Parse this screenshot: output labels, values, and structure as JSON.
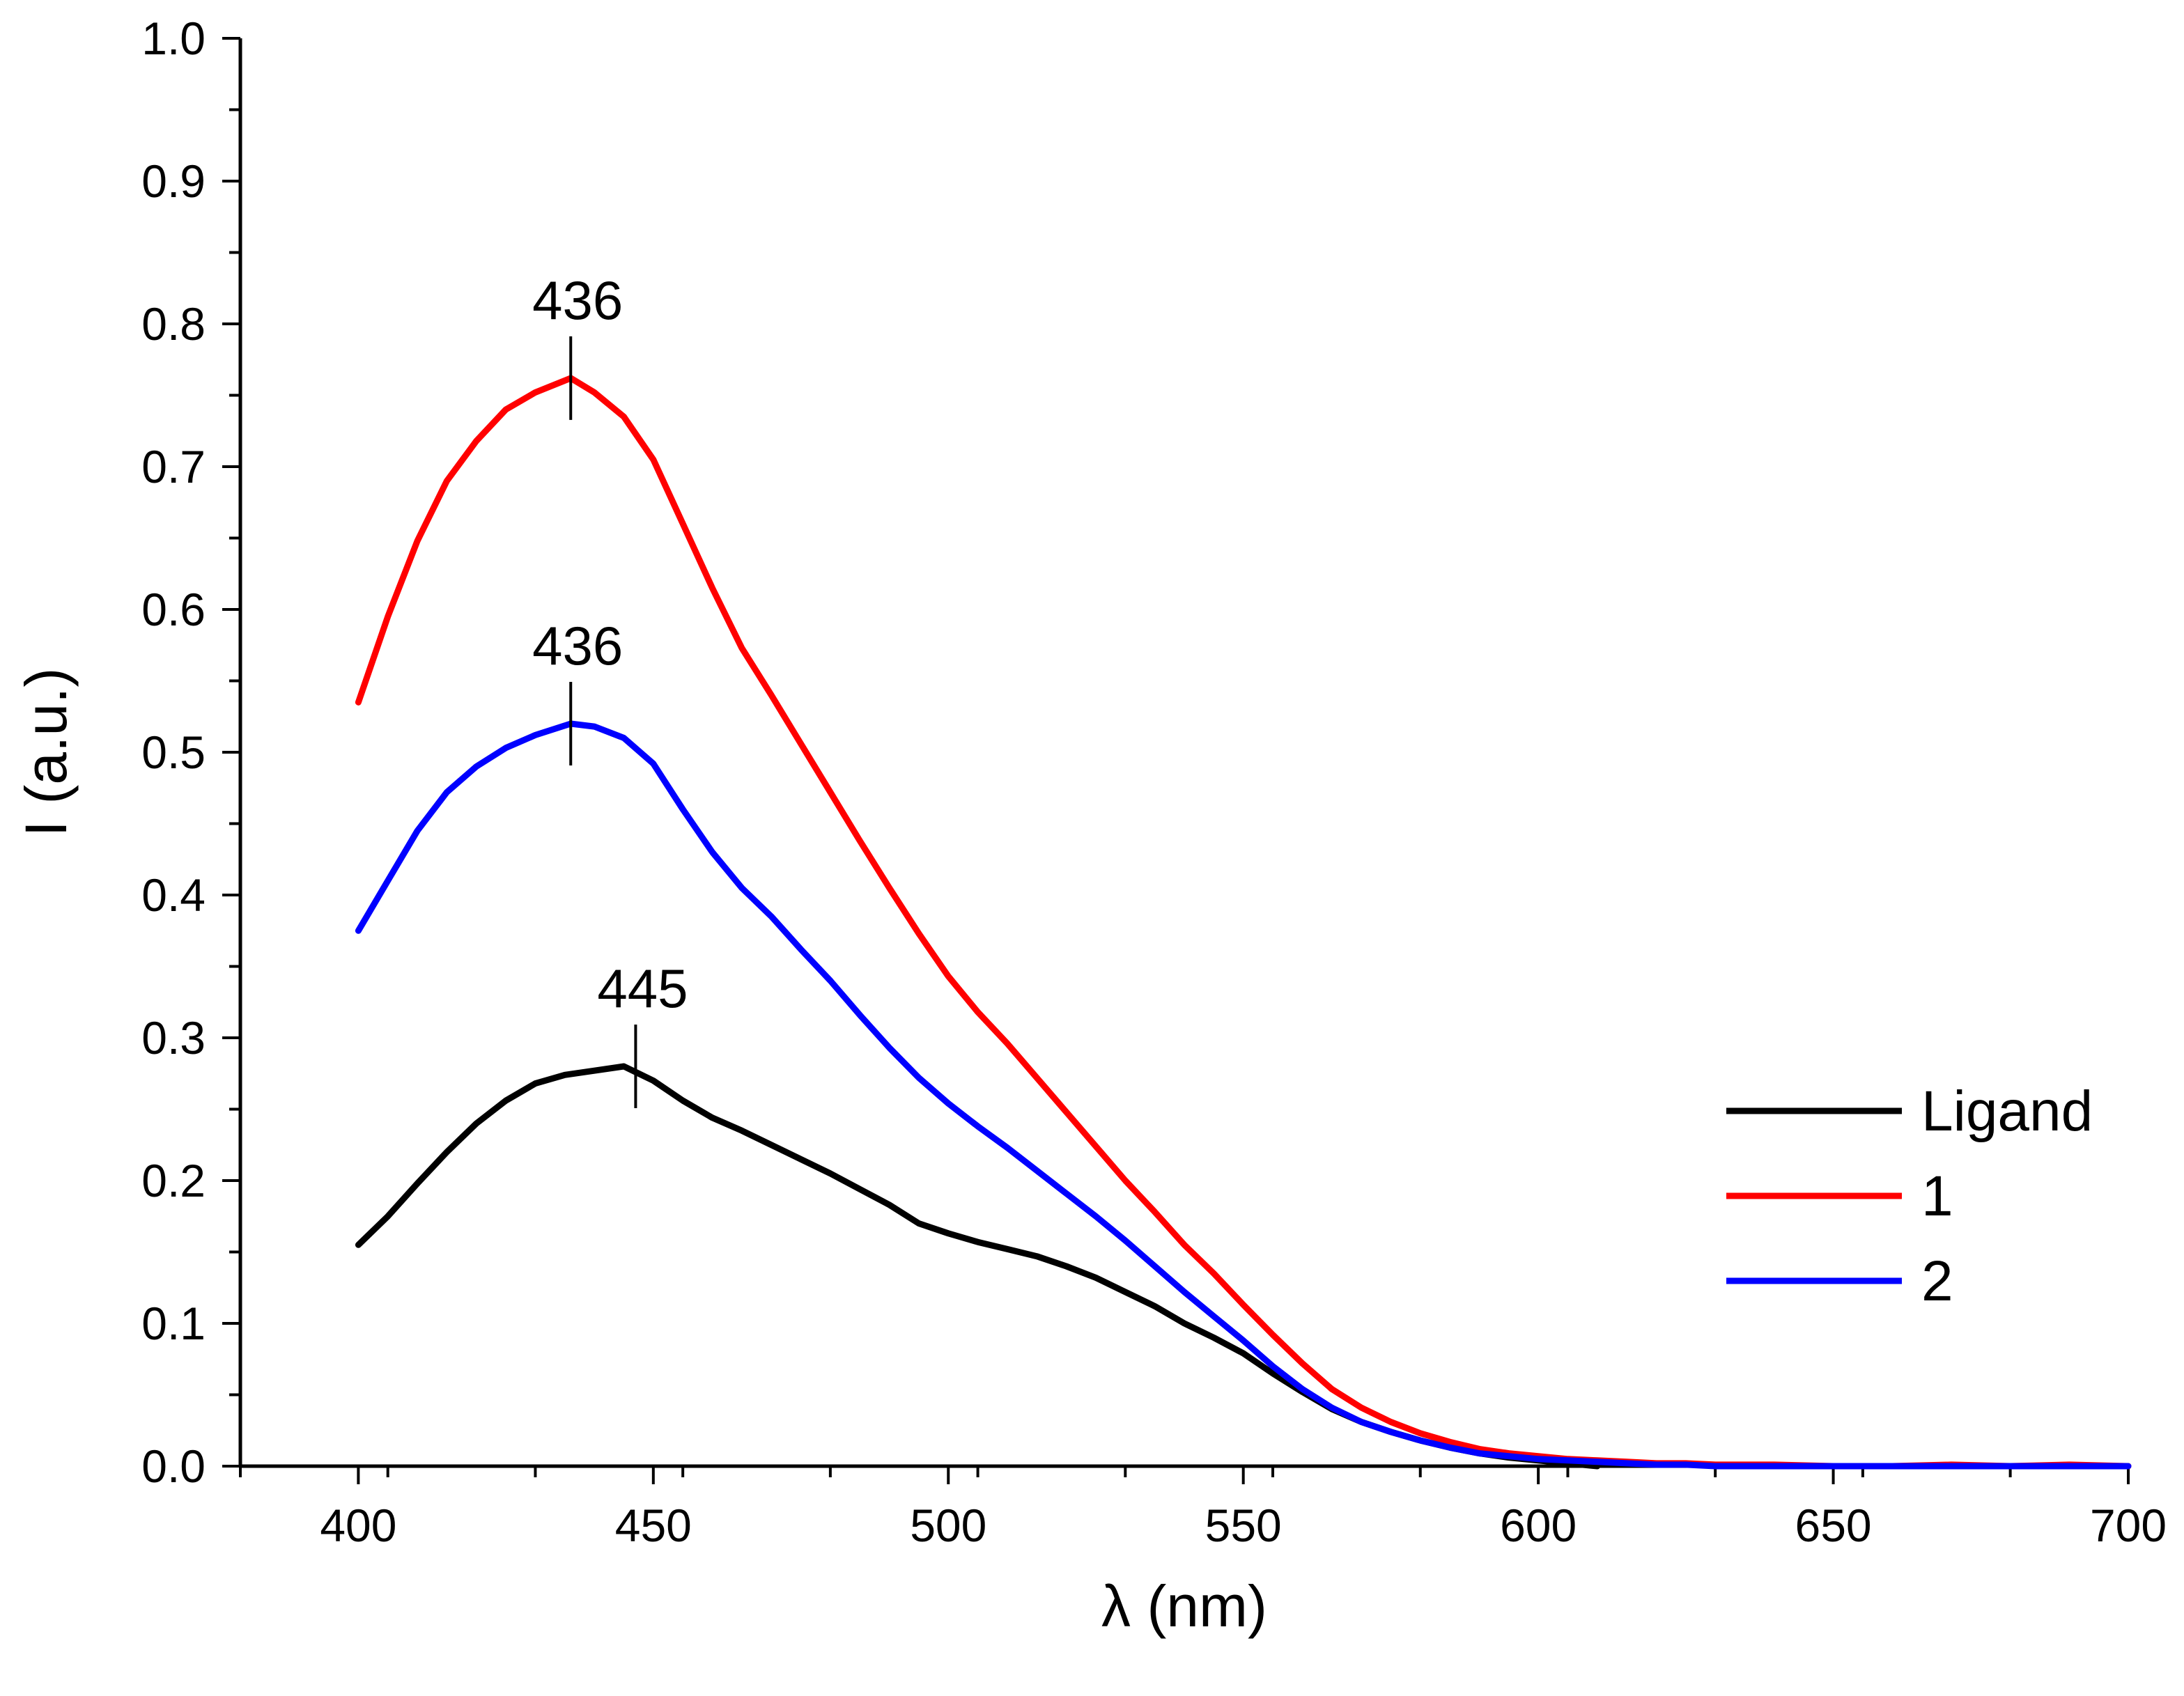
{
  "chart_data": {
    "type": "line",
    "title": "",
    "xlabel": "λ (nm)",
    "ylabel": "I (a.u.)",
    "xlim": [
      380,
      700
    ],
    "ylim": [
      0.0,
      1.0
    ],
    "x_ticks": [
      400,
      450,
      500,
      550,
      600,
      650,
      700
    ],
    "x_tick_labels": [
      "400",
      "450",
      "500",
      "550",
      "600",
      "650",
      "700"
    ],
    "y_ticks": [
      0.0,
      0.1,
      0.2,
      0.3,
      0.4,
      0.5,
      0.6,
      0.7,
      0.8,
      0.9,
      1.0
    ],
    "y_tick_labels": [
      "0.0",
      "0.1",
      "0.2",
      "0.3",
      "0.4",
      "0.5",
      "0.6",
      "0.7",
      "0.8",
      "0.9",
      "1.0"
    ],
    "legend_position": "right",
    "series": [
      {
        "name": "Ligand",
        "color": "#000000",
        "x": [
          400,
          405,
          410,
          415,
          420,
          425,
          430,
          435,
          440,
          445,
          447,
          450,
          455,
          460,
          465,
          470,
          475,
          480,
          485,
          490,
          495,
          500,
          505,
          510,
          515,
          520,
          525,
          530,
          535,
          540,
          545,
          550,
          555,
          560,
          565,
          570,
          575,
          580,
          585,
          590,
          595,
          600,
          605,
          610
        ],
        "y": [
          0.155,
          0.175,
          0.198,
          0.22,
          0.24,
          0.256,
          0.268,
          0.274,
          0.277,
          0.28,
          0.276,
          0.27,
          0.256,
          0.244,
          0.235,
          0.225,
          0.215,
          0.205,
          0.194,
          0.183,
          0.17,
          0.163,
          0.157,
          0.152,
          0.147,
          0.14,
          0.132,
          0.122,
          0.112,
          0.1,
          0.09,
          0.079,
          0.065,
          0.052,
          0.04,
          0.031,
          0.024,
          0.018,
          0.013,
          0.009,
          0.006,
          0.004,
          0.002,
          0.0
        ]
      },
      {
        "name": "1",
        "color": "#ff0000",
        "x": [
          400,
          405,
          410,
          415,
          420,
          425,
          430,
          436,
          440,
          445,
          450,
          455,
          460,
          465,
          470,
          475,
          480,
          485,
          490,
          495,
          500,
          505,
          510,
          515,
          520,
          525,
          530,
          535,
          540,
          545,
          550,
          555,
          560,
          565,
          570,
          575,
          580,
          585,
          590,
          595,
          600,
          605,
          610,
          615,
          620,
          625,
          630,
          640,
          650,
          660,
          670,
          680,
          690,
          700
        ],
        "y": [
          0.535,
          0.595,
          0.648,
          0.69,
          0.718,
          0.74,
          0.752,
          0.762,
          0.752,
          0.735,
          0.705,
          0.66,
          0.615,
          0.573,
          0.54,
          0.506,
          0.472,
          0.438,
          0.405,
          0.373,
          0.343,
          0.318,
          0.296,
          0.272,
          0.248,
          0.224,
          0.2,
          0.178,
          0.155,
          0.135,
          0.113,
          0.092,
          0.072,
          0.054,
          0.041,
          0.031,
          0.023,
          0.017,
          0.012,
          0.009,
          0.007,
          0.005,
          0.004,
          0.003,
          0.002,
          0.002,
          0.001,
          0.001,
          0.0,
          0.0,
          0.001,
          0.0,
          0.001,
          0.0
        ]
      },
      {
        "name": "2",
        "color": "#0000ff",
        "x": [
          400,
          405,
          410,
          415,
          420,
          425,
          430,
          436,
          440,
          445,
          450,
          455,
          460,
          465,
          470,
          475,
          480,
          485,
          490,
          495,
          500,
          505,
          510,
          515,
          520,
          525,
          530,
          535,
          540,
          545,
          550,
          555,
          560,
          565,
          570,
          575,
          580,
          585,
          590,
          595,
          600,
          605,
          610,
          615,
          620,
          625,
          630,
          640,
          650,
          660,
          670,
          680,
          690,
          700
        ],
        "y": [
          0.375,
          0.41,
          0.445,
          0.472,
          0.49,
          0.503,
          0.512,
          0.52,
          0.518,
          0.51,
          0.492,
          0.46,
          0.43,
          0.405,
          0.385,
          0.362,
          0.34,
          0.316,
          0.293,
          0.272,
          0.254,
          0.238,
          0.223,
          0.207,
          0.191,
          0.175,
          0.158,
          0.14,
          0.122,
          0.105,
          0.088,
          0.07,
          0.054,
          0.041,
          0.031,
          0.024,
          0.018,
          0.013,
          0.009,
          0.007,
          0.005,
          0.004,
          0.003,
          0.002,
          0.001,
          0.001,
          0.0,
          0.0,
          0.0,
          0.0,
          0.0,
          0.0,
          0.0,
          0.0
        ]
      }
    ],
    "annotations": [
      {
        "label": "436",
        "x": 436,
        "y": 0.762,
        "series": "1"
      },
      {
        "label": "436",
        "x": 436,
        "y": 0.52,
        "series": "2"
      },
      {
        "label": "445",
        "x": 447,
        "y": 0.28,
        "series": "Ligand"
      }
    ]
  }
}
